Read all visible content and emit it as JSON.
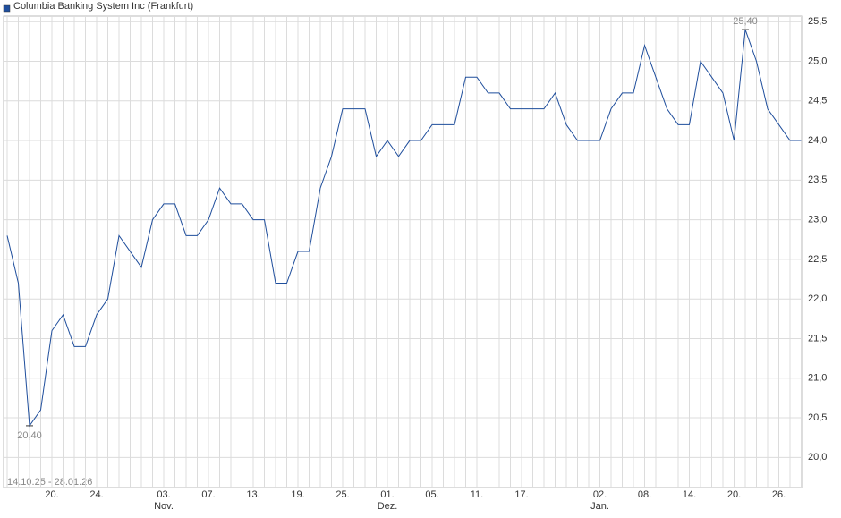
{
  "chart_data": {
    "type": "line",
    "title": "Columbia Banking System Inc (Frankfurt)",
    "date_range": "14.10.25 - 28.01.26",
    "categories": [
      null,
      null,
      null,
      null,
      "20.",
      null,
      null,
      null,
      "24.",
      null,
      null,
      null,
      null,
      null,
      "03.",
      null,
      null,
      null,
      "07.",
      null,
      null,
      null,
      "13.",
      null,
      null,
      null,
      "19.",
      null,
      null,
      null,
      "25.",
      null,
      null,
      null,
      "01.",
      null,
      null,
      null,
      "05.",
      null,
      null,
      null,
      "11.",
      null,
      null,
      null,
      "17.",
      null,
      null,
      null,
      null,
      null,
      null,
      "02.",
      null,
      null,
      null,
      "08.",
      null,
      null,
      null,
      "14.",
      null,
      null,
      null,
      "20.",
      null,
      null,
      null,
      "26.",
      null,
      null
    ],
    "months": [
      null,
      null,
      null,
      null,
      null,
      null,
      null,
      null,
      null,
      null,
      null,
      null,
      null,
      null,
      "Nov.",
      null,
      null,
      null,
      null,
      null,
      null,
      null,
      null,
      null,
      null,
      null,
      null,
      null,
      null,
      null,
      null,
      null,
      null,
      null,
      "Dez.",
      null,
      null,
      null,
      null,
      null,
      null,
      null,
      null,
      null,
      null,
      null,
      null,
      null,
      null,
      null,
      null,
      null,
      null,
      "Jan.",
      null,
      null,
      null,
      null,
      null,
      null,
      null,
      null,
      null,
      null,
      null,
      null,
      null,
      null,
      null,
      null,
      null,
      null
    ],
    "series": [
      {
        "name": "Columbia Banking System Inc (Frankfurt)",
        "color": "#1f4e9c",
        "values": [
          22.8,
          22.2,
          20.4,
          20.6,
          21.6,
          21.8,
          21.4,
          21.4,
          21.8,
          22.0,
          22.8,
          22.6,
          22.4,
          23.0,
          23.2,
          23.2,
          22.8,
          22.8,
          23.0,
          23.4,
          23.2,
          23.2,
          23.0,
          23.0,
          22.2,
          22.2,
          22.6,
          22.6,
          23.4,
          23.8,
          24.4,
          24.4,
          24.4,
          23.8,
          24.0,
          23.8,
          24.0,
          24.0,
          24.2,
          24.2,
          24.2,
          24.8,
          24.8,
          24.6,
          24.6,
          24.4,
          24.4,
          24.4,
          24.4,
          24.6,
          24.2,
          24.0,
          24.0,
          24.0,
          24.4,
          24.6,
          24.6,
          25.2,
          24.8,
          24.4,
          24.2,
          24.2,
          25.0,
          24.8,
          24.6,
          24.0,
          25.4,
          25.0,
          24.4,
          24.2,
          24.0,
          24.0
        ]
      }
    ],
    "extremes": [
      {
        "value": 20.4,
        "label": "20,40"
      },
      {
        "value": 25.4,
        "label": "25,40"
      }
    ],
    "ylim": [
      19.62,
      25.57
    ],
    "yticks": [
      {
        "value": 20.0,
        "label": "20,0"
      },
      {
        "value": 20.5,
        "label": "20,5"
      },
      {
        "value": 21.0,
        "label": "21,0"
      },
      {
        "value": 21.5,
        "label": "21,5"
      },
      {
        "value": 22.0,
        "label": "22,0"
      },
      {
        "value": 22.5,
        "label": "22,5"
      },
      {
        "value": 23.0,
        "label": "23,0"
      },
      {
        "value": 23.5,
        "label": "23,5"
      },
      {
        "value": 24.0,
        "label": "24,0"
      },
      {
        "value": 24.5,
        "label": "24,5"
      },
      {
        "value": 25.0,
        "label": "25,0"
      },
      {
        "value": 25.5,
        "label": "25,5"
      }
    ],
    "grid": true
  }
}
